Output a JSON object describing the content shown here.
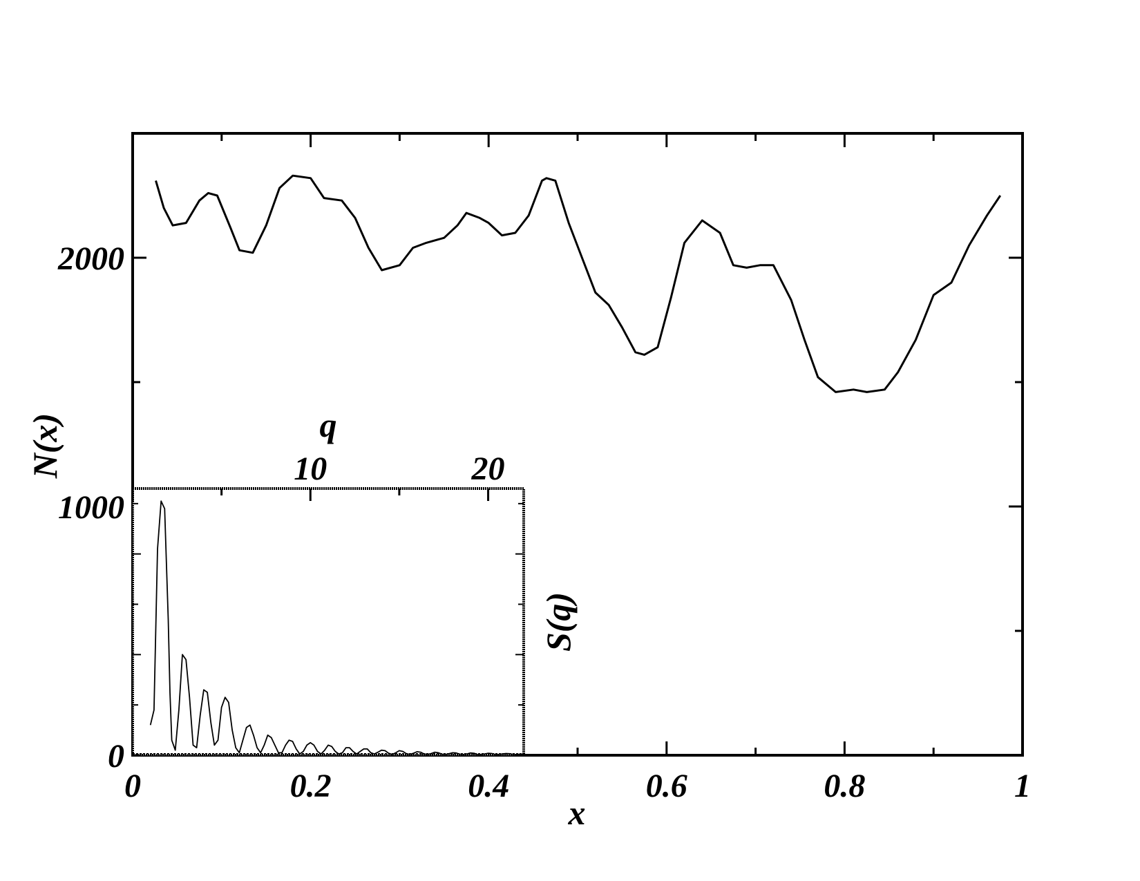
{
  "chart_data": [
    {
      "type": "line",
      "xlabel": "x",
      "ylabel": "N(x)",
      "xlim": [
        0,
        1
      ],
      "ylim": [
        0,
        2500
      ],
      "x_ticks": [
        "0",
        "0.2",
        "0.4",
        "0.6",
        "0.8",
        "1"
      ],
      "y_ticks": [
        "0",
        "1000",
        "2000"
      ],
      "grid": false,
      "legend": "none",
      "line_color": "#000000",
      "series": [
        {
          "x": [
            0.026,
            0.035,
            0.045,
            0.06,
            0.075,
            0.085,
            0.095,
            0.11,
            0.12,
            0.135,
            0.15,
            0.165,
            0.18,
            0.2,
            0.215,
            0.235,
            0.25,
            0.265,
            0.28,
            0.3,
            0.315,
            0.33,
            0.35,
            0.365,
            0.375,
            0.39,
            0.4,
            0.415,
            0.43,
            0.445,
            0.46,
            0.465,
            0.475,
            0.49,
            0.505,
            0.52,
            0.535,
            0.55,
            0.565,
            0.575,
            0.59,
            0.605,
            0.62,
            0.64,
            0.66,
            0.675,
            0.69,
            0.705,
            0.72,
            0.74,
            0.755,
            0.77,
            0.79,
            0.81,
            0.825,
            0.845,
            0.86,
            0.88,
            0.9,
            0.92,
            0.94,
            0.96,
            0.975
          ],
          "y": [
            2310,
            2200,
            2130,
            2140,
            2230,
            2260,
            2250,
            2120,
            2030,
            2020,
            2130,
            2280,
            2330,
            2320,
            2240,
            2230,
            2160,
            2040,
            1950,
            1970,
            2040,
            2060,
            2080,
            2130,
            2180,
            2160,
            2140,
            2090,
            2100,
            2170,
            2310,
            2320,
            2310,
            2140,
            2000,
            1860,
            1810,
            1720,
            1620,
            1610,
            1640,
            1840,
            2060,
            2150,
            2100,
            1970,
            1960,
            1970,
            1970,
            1830,
            1670,
            1520,
            1460,
            1470,
            1460,
            1470,
            1540,
            1670,
            1850,
            1900,
            2050,
            2170,
            2250
          ]
        }
      ]
    },
    {
      "type": "line",
      "xlabel": "q",
      "ylabel": "S(q)",
      "xlim": [
        0,
        22
      ],
      "ylim": [
        0,
        1060
      ],
      "x_ticks": [
        "10",
        "20"
      ],
      "y_ticks": [],
      "grid": false,
      "legend": "none",
      "line_color": "#000000",
      "series": [
        {
          "x": [
            1.0,
            1.2,
            1.4,
            1.6,
            1.8,
            2.0,
            2.1,
            2.2,
            2.4,
            2.6,
            2.8,
            3.0,
            3.2,
            3.4,
            3.6,
            3.8,
            4.0,
            4.2,
            4.4,
            4.6,
            4.8,
            5.0,
            5.2,
            5.4,
            5.6,
            5.8,
            6.0,
            6.2,
            6.4,
            6.6,
            6.8,
            7.0,
            7.2,
            7.4,
            7.6,
            7.8,
            8.0,
            8.2,
            8.4,
            8.6,
            8.8,
            9.0,
            9.2,
            9.4,
            9.6,
            9.8,
            10.0,
            10.2,
            10.4,
            10.6,
            10.8,
            11.0,
            11.2,
            11.4,
            11.6,
            11.8,
            12.0,
            12.2,
            12.4,
            12.6,
            12.8,
            13.0,
            13.2,
            13.4,
            13.6,
            13.8,
            14.0,
            14.2,
            14.4,
            14.6,
            14.8,
            15.0,
            15.2,
            15.4,
            15.6,
            15.8,
            16.0,
            16.2,
            16.4,
            16.6,
            16.8,
            17.0,
            17.2,
            17.4,
            17.6,
            17.8,
            18.0,
            18.2,
            18.4,
            18.6,
            18.8,
            19.0,
            19.2,
            19.4,
            19.6,
            19.8,
            20.0,
            20.2,
            20.4,
            20.6,
            20.8,
            21.0,
            21.2,
            21.4,
            21.6,
            21.8,
            22.0
          ],
          "y": [
            120,
            180,
            820,
            1010,
            980,
            540,
            250,
            60,
            20,
            180,
            400,
            380,
            230,
            40,
            30,
            160,
            260,
            250,
            130,
            40,
            60,
            190,
            230,
            210,
            100,
            30,
            10,
            60,
            110,
            120,
            80,
            30,
            10,
            40,
            80,
            70,
            40,
            10,
            10,
            40,
            60,
            55,
            25,
            5,
            15,
            40,
            50,
            40,
            15,
            5,
            20,
            40,
            35,
            15,
            5,
            10,
            30,
            30,
            15,
            5,
            15,
            25,
            25,
            10,
            5,
            12,
            20,
            18,
            8,
            3,
            10,
            18,
            15,
            6,
            3,
            8,
            14,
            12,
            5,
            3,
            7,
            12,
            10,
            4,
            3,
            6,
            10,
            9,
            4,
            3,
            5,
            9,
            8,
            3,
            3,
            5,
            8,
            7,
            3,
            3,
            5,
            7,
            6,
            3,
            3,
            4,
            3
          ]
        }
      ]
    }
  ]
}
